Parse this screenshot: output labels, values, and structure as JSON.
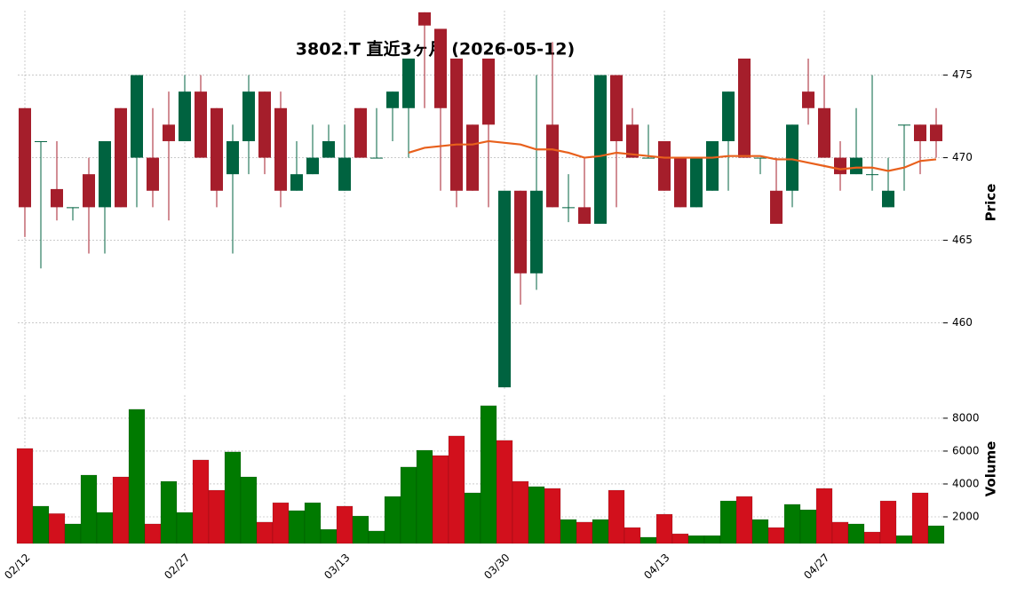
{
  "chart_data": {
    "type": "candlestick",
    "title": "3802.T  直近3ヶ月 (2026-05-12)",
    "categories": [
      "02/12",
      null,
      null,
      null,
      null,
      null,
      null,
      null,
      null,
      null,
      "02/27",
      null,
      null,
      null,
      null,
      null,
      null,
      null,
      null,
      null,
      "03/13",
      null,
      null,
      null,
      null,
      null,
      null,
      null,
      null,
      null,
      "03/30",
      null,
      null,
      null,
      null,
      null,
      null,
      null,
      null,
      null,
      "04/13",
      null,
      null,
      null,
      null,
      null,
      null,
      null,
      null,
      null,
      "04/27",
      null,
      null,
      null,
      null,
      null,
      null,
      null
    ],
    "open": [
      473,
      471,
      468.1,
      467,
      469,
      467,
      473,
      470,
      470,
      472,
      471,
      474,
      473,
      469,
      471,
      474,
      473,
      468,
      469,
      470,
      468,
      473,
      470,
      473,
      473,
      478.8,
      477.8,
      476,
      472,
      476,
      456.1,
      468,
      463,
      472,
      467,
      467,
      466,
      475,
      472,
      470,
      471,
      470,
      467,
      468,
      471,
      476,
      470,
      468,
      468,
      474,
      473,
      470,
      469,
      469,
      467,
      472,
      472,
      472
    ],
    "high": [
      473,
      471,
      471,
      467,
      470,
      471,
      473,
      475,
      473,
      474,
      475,
      475,
      473,
      472,
      475,
      474,
      474,
      471,
      472,
      472,
      472,
      473,
      473,
      474,
      476,
      478.8,
      477.8,
      476,
      472,
      476,
      468,
      468,
      475,
      477,
      469,
      470,
      475,
      475,
      473,
      472,
      471,
      470,
      470,
      471,
      474,
      476,
      470,
      470,
      472,
      476,
      475,
      471,
      473,
      475,
      470,
      472,
      472,
      473
    ],
    "low": [
      465.2,
      463.3,
      466.2,
      466.2,
      464.2,
      464.2,
      467,
      467,
      467,
      466.2,
      471,
      470,
      467,
      464.2,
      469,
      469,
      467,
      468,
      469,
      470,
      468,
      470,
      470,
      471,
      470,
      473,
      468,
      467,
      468,
      467,
      456.1,
      461.1,
      462,
      467,
      466.1,
      466,
      466,
      467,
      470,
      470,
      468,
      467,
      467,
      468,
      468,
      470,
      469,
      466,
      467,
      472,
      470,
      468,
      469,
      468,
      467,
      468,
      469,
      470
    ],
    "close": [
      467,
      471,
      467,
      467,
      467,
      471,
      467,
      475,
      468,
      471,
      474,
      470,
      468,
      471,
      474,
      470,
      468,
      469,
      470,
      471,
      470,
      470,
      470,
      474,
      476,
      478,
      473,
      468,
      468,
      472,
      468,
      463,
      468,
      467,
      467,
      466,
      475,
      471,
      470,
      470,
      468,
      467,
      470,
      471,
      474,
      470,
      470,
      466,
      472,
      473,
      470,
      469,
      470,
      469,
      468,
      472,
      471,
      471
    ],
    "up_color": "#006340",
    "down_color": "#a51e2b",
    "ma": {
      "color": "#e8601c",
      "values": [
        null,
        null,
        null,
        null,
        null,
        null,
        null,
        null,
        null,
        null,
        null,
        null,
        null,
        null,
        null,
        null,
        null,
        null,
        null,
        null,
        null,
        null,
        null,
        null,
        470.3,
        470.6,
        470.7,
        470.8,
        470.8,
        471.0,
        470.9,
        470.8,
        470.5,
        470.5,
        470.3,
        470.0,
        470.1,
        470.3,
        470.2,
        470.1,
        470.0,
        470.0,
        470.0,
        470.0,
        470.1,
        470.1,
        470.1,
        469.9,
        469.9,
        469.7,
        469.5,
        469.3,
        469.4,
        469.4,
        469.2,
        469.4,
        469.8,
        469.9
      ]
    },
    "ylabel": "Price",
    "ylim": [
      456,
      478.9
    ],
    "yticks": [
      460,
      465,
      470,
      475
    ],
    "grid": true,
    "volume": {
      "ylabel": "Volume",
      "up_color": "#007a00",
      "down_color": "#d2101c",
      "values": [
        6160,
        2650,
        2200,
        1570,
        4540,
        2270,
        4430,
        8540,
        1570,
        4160,
        2270,
        5460,
        3620,
        5950,
        4430,
        1680,
        2860,
        2380,
        2860,
        1240,
        2650,
        2050,
        1140,
        3240,
        5030,
        6050,
        5730,
        6920,
        3460,
        8760,
        6650,
        4160,
        3840,
        3730,
        1840,
        1680,
        1840,
        3620,
        1350,
        760,
        2160,
        970,
        860,
        860,
        2970,
        3240,
        1840,
        1350,
        2760,
        2430,
        3730,
        1680,
        1570,
        1080,
        2970,
        860,
        3460,
        1460
      ],
      "ylim": [
        380,
        9400
      ],
      "yticks": [
        2000,
        4000,
        6000,
        8000
      ]
    }
  }
}
